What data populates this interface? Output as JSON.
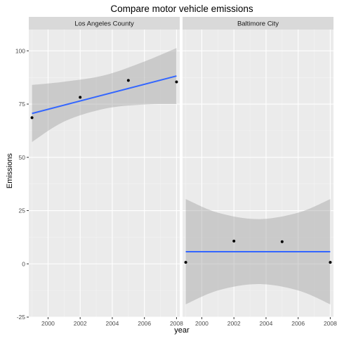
{
  "chart_data": {
    "type": "scatter",
    "title": "Compare motor vehicle emissions",
    "xlabel": "year",
    "ylabel": "Emissions",
    "xlim": [
      1998.8,
      2008.2
    ],
    "ylim": [
      -25,
      110
    ],
    "x_ticks": [
      2000,
      2002,
      2004,
      2006,
      2008
    ],
    "x_tick_labels": [
      "2000",
      "2002",
      "2004",
      "2006",
      "2008"
    ],
    "y_ticks": [
      -25,
      0,
      25,
      50,
      75,
      100
    ],
    "y_tick_labels": [
      "-25",
      "0",
      "25",
      "50",
      "75",
      "100"
    ],
    "grid": true,
    "panel_background": "#ebebeb",
    "strip_background": "#d9d9d9",
    "point_color": "#000000",
    "trend_color": "#3366ff",
    "band_color": "#999999",
    "panels": [
      {
        "label": "Los Angeles County",
        "points": [
          {
            "x": 1999,
            "y": 68.6
          },
          {
            "x": 2002,
            "y": 78.2
          },
          {
            "x": 2005,
            "y": 86.1
          },
          {
            "x": 2008,
            "y": 85.4
          }
        ],
        "trend": {
          "x": [
            1999,
            2008
          ],
          "y": [
            70.6,
            88.2
          ]
        },
        "confidence_band": {
          "x": [
            1999,
            2001,
            2003.5,
            2006,
            2008
          ],
          "lower": [
            57.2,
            66.8,
            72.8,
            74.8,
            75.0
          ],
          "upper": [
            84.0,
            85.5,
            88.5,
            95.0,
            101.3
          ]
        }
      },
      {
        "label": "Baltimore City",
        "points": [
          {
            "x": 1999,
            "y": 0.7
          },
          {
            "x": 2002,
            "y": 10.7
          },
          {
            "x": 2005,
            "y": 10.4
          },
          {
            "x": 2008,
            "y": 0.7
          }
        ],
        "trend": {
          "x": [
            1999,
            2008
          ],
          "y": [
            5.7,
            5.7
          ]
        },
        "confidence_band": {
          "x": [
            1999,
            2001,
            2003.5,
            2006,
            2008
          ],
          "lower": [
            -19.0,
            -12.5,
            -9.5,
            -12.5,
            -19.0
          ],
          "upper": [
            30.4,
            24.0,
            21.0,
            24.0,
            30.4
          ]
        }
      }
    ]
  }
}
